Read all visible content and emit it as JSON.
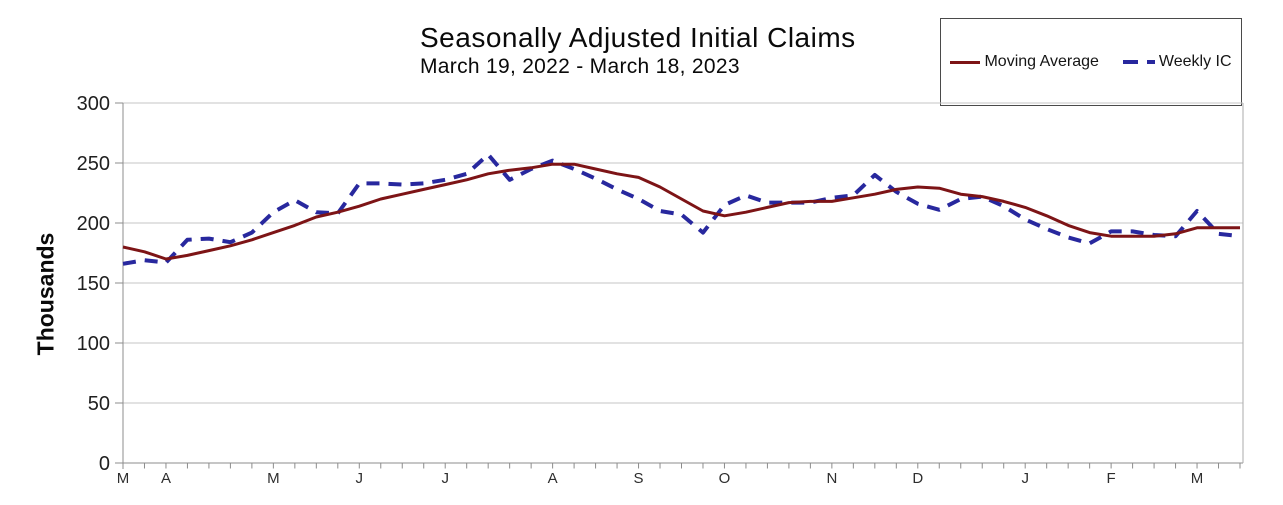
{
  "header": {
    "title": "Seasonally Adjusted Initial Claims",
    "subtitle": "March 19, 2022 - March 18, 2023"
  },
  "legend": {
    "items": [
      {
        "label": "Moving Average",
        "style": "solid",
        "color": "#7d1416"
      },
      {
        "label": "Weekly IC",
        "style": "dashed",
        "color": "#28289e"
      }
    ]
  },
  "chart_data": {
    "type": "line",
    "title": "Seasonally Adjusted Initial Claims",
    "subtitle": "March 19, 2022 - March 18, 2023",
    "xlabel": "",
    "ylabel": "Thousands",
    "ylim": [
      0,
      300
    ],
    "yticks": [
      0,
      50,
      100,
      150,
      200,
      250,
      300
    ],
    "grid": "horizontal",
    "legend_position": "top-right",
    "weeks_total": 53,
    "x_month_ticks": [
      {
        "label": "M",
        "week": 0
      },
      {
        "label": "A",
        "week": 2
      },
      {
        "label": "M",
        "week": 7
      },
      {
        "label": "J",
        "week": 11
      },
      {
        "label": "J",
        "week": 15
      },
      {
        "label": "A",
        "week": 20
      },
      {
        "label": "S",
        "week": 24
      },
      {
        "label": "O",
        "week": 28
      },
      {
        "label": "N",
        "week": 33
      },
      {
        "label": "D",
        "week": 37
      },
      {
        "label": "J",
        "week": 42
      },
      {
        "label": "F",
        "week": 46
      },
      {
        "label": "M",
        "week": 50
      }
    ],
    "series": [
      {
        "name": "Moving Average",
        "style": "solid",
        "color": "#7d1416",
        "values": [
          180,
          176,
          170,
          173,
          177,
          181,
          186,
          192,
          198,
          205,
          209,
          214,
          220,
          224,
          228,
          232,
          236,
          241,
          244,
          246,
          249,
          249,
          245,
          241,
          238,
          230,
          220,
          210,
          206,
          209,
          213,
          217,
          218,
          218,
          221,
          224,
          228,
          230,
          229,
          224,
          222,
          218,
          213,
          206,
          198,
          192,
          189,
          189,
          189,
          191,
          196,
          196,
          196
        ]
      },
      {
        "name": "Weekly IC",
        "style": "dashed",
        "color": "#28289e",
        "values": [
          166,
          169,
          167,
          186,
          187,
          184,
          192,
          209,
          219,
          209,
          208,
          233,
          233,
          232,
          233,
          236,
          241,
          257,
          236,
          245,
          252,
          245,
          237,
          228,
          220,
          210,
          207,
          192,
          215,
          223,
          217,
          217,
          217,
          221,
          223,
          240,
          226,
          216,
          211,
          220,
          222,
          214,
          203,
          195,
          188,
          183,
          193,
          193,
          190,
          189,
          210,
          191,
          189
        ]
      }
    ],
    "axis_colors": {
      "gridline": "#c6c6c6",
      "axis": "#8c8c8c",
      "tick_label": "#1f1f1f",
      "month_label": "#2e2e2e"
    }
  }
}
